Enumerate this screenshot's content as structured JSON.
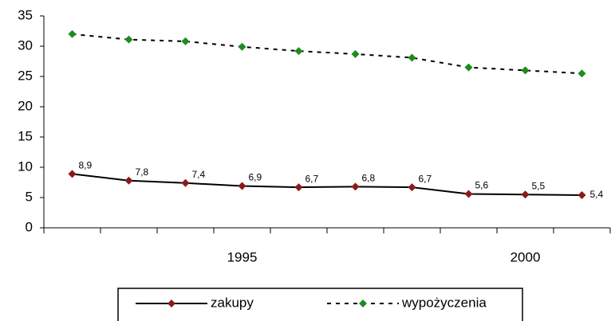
{
  "chart_data": {
    "type": "line",
    "categories": [
      null,
      null,
      null,
      "1995",
      null,
      null,
      null,
      null,
      "2000",
      null
    ],
    "series": [
      {
        "name": "zakupy",
        "color": "#8b1a1a",
        "line_color": "#000000",
        "dash": false,
        "values": [
          8.9,
          7.8,
          7.4,
          6.9,
          6.7,
          6.8,
          6.7,
          5.6,
          5.5,
          5.4
        ],
        "value_labels": [
          "8,9",
          "7,8",
          "7,4",
          "6,9",
          "6,7",
          "6,8",
          "6,7",
          "5,6",
          "5,5",
          "5,4"
        ]
      },
      {
        "name": "wypożyczenia",
        "color": "#1e8b1e",
        "line_color": "#000000",
        "dash": true,
        "values": [
          32,
          31.1,
          30.8,
          29.9,
          29.2,
          28.7,
          28.1,
          26.5,
          26,
          25.5
        ]
      }
    ],
    "ylim": [
      0,
      35
    ],
    "yticks": [
      0,
      5,
      10,
      15,
      20,
      25,
      30,
      35
    ],
    "grid": false,
    "legend": "bottom"
  }
}
